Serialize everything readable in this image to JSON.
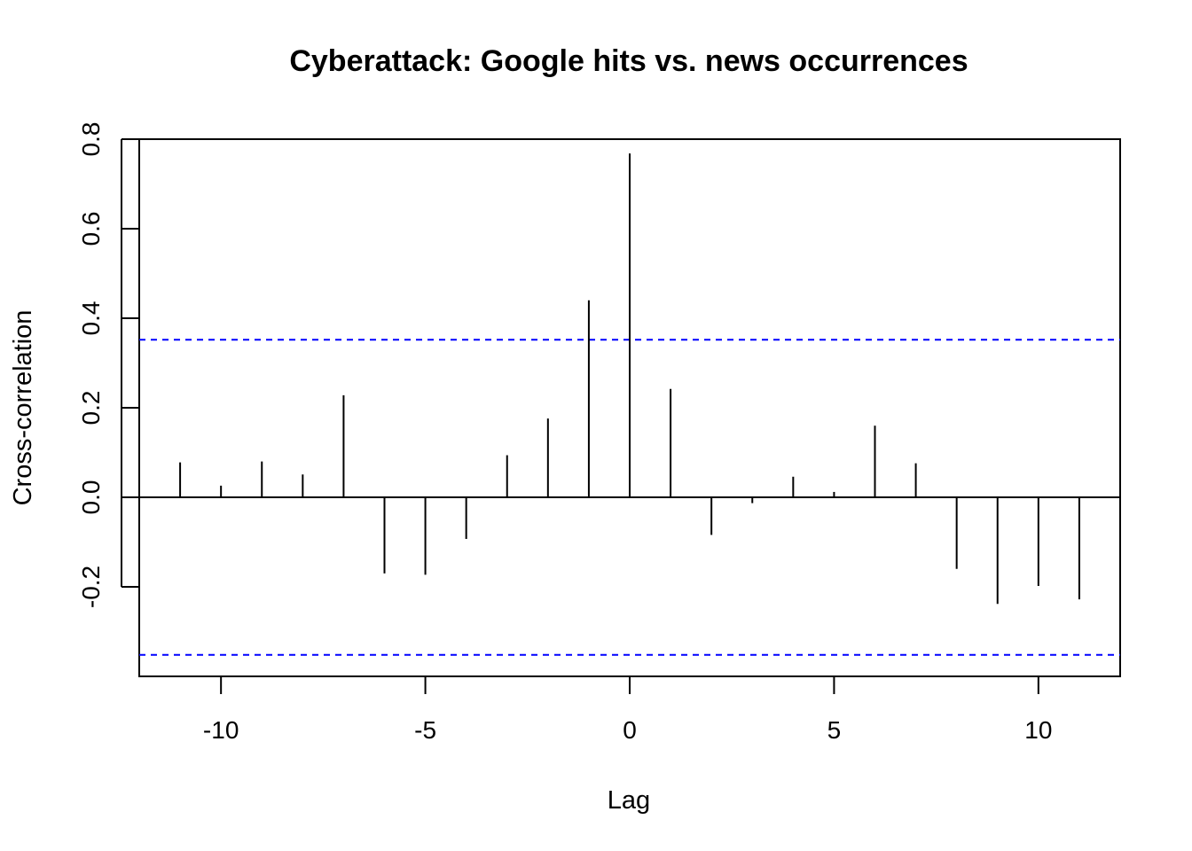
{
  "chart_data": {
    "type": "bar",
    "title": "Cyberattack: Google hits vs. news occurrences",
    "xlabel": "Lag",
    "ylabel": "Cross-correlation",
    "xlim": [
      -12,
      12
    ],
    "ylim": [
      -0.4,
      0.8
    ],
    "x_ticks": [
      -10,
      -5,
      0,
      5,
      10
    ],
    "x_tick_labels": [
      "-10",
      "-5",
      "0",
      "5",
      "10"
    ],
    "y_ticks": [
      -0.2,
      0.0,
      0.2,
      0.4,
      0.6,
      0.8
    ],
    "y_tick_labels": [
      "-0.2",
      "0.0",
      "0.2",
      "0.4",
      "0.6",
      "0.8"
    ],
    "lags": [
      -11,
      -10,
      -9,
      -8,
      -7,
      -6,
      -5,
      -4,
      -3,
      -2,
      -1,
      0,
      1,
      2,
      3,
      4,
      5,
      6,
      7,
      8,
      9,
      10,
      11
    ],
    "values": [
      0.078,
      0.026,
      0.08,
      0.051,
      0.228,
      -0.17,
      -0.173,
      -0.093,
      0.094,
      0.176,
      0.44,
      0.768,
      0.242,
      -0.084,
      -0.013,
      0.046,
      0.012,
      0.16,
      0.076,
      -0.16,
      -0.238,
      -0.198,
      -0.228
    ],
    "confidence_limits": [
      0.352,
      -0.352
    ],
    "confidence_color": "#0000ff",
    "grid": false
  }
}
